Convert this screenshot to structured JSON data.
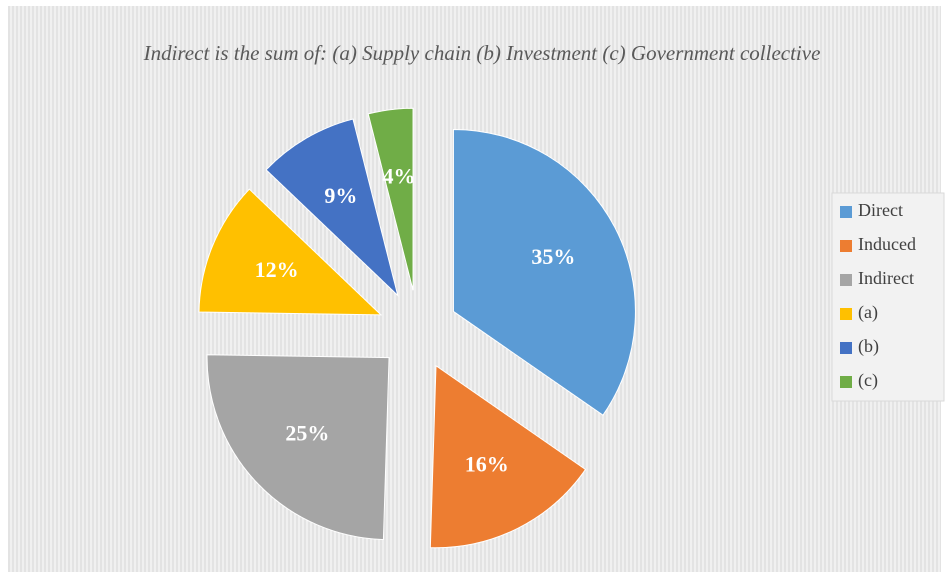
{
  "chart_data": {
    "type": "pie",
    "title": "Indirect is the sum of: (a) Supply chain (b) Investment (c) Government collective",
    "categories": [
      "Direct",
      "Induced",
      "Indirect",
      "(a)",
      "(b)",
      "(c)"
    ],
    "values": [
      35,
      16,
      25,
      12,
      9,
      4
    ],
    "value_labels": [
      "35%",
      "16%",
      "25%",
      "12%",
      "9%",
      "4%"
    ],
    "colors": [
      "#5b9bd5",
      "#ed7d31",
      "#a5a5a5",
      "#ffc000",
      "#4472c4",
      "#70ad47"
    ],
    "exploded": true,
    "legend": "right"
  }
}
